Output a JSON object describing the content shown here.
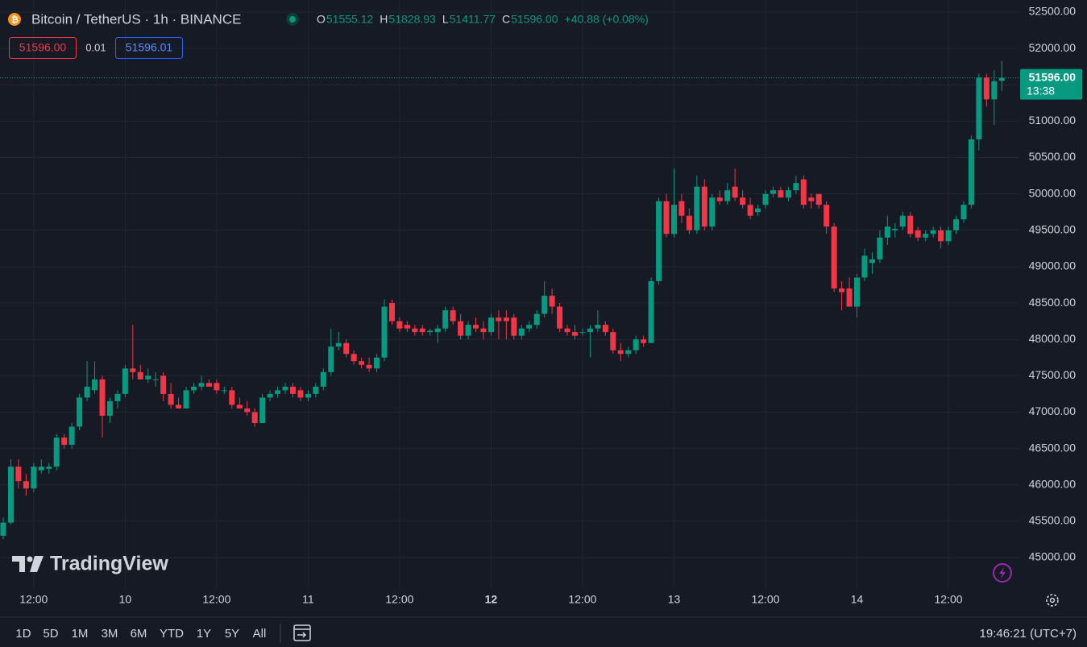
{
  "chart_data": {
    "type": "candlestick",
    "title": "Bitcoin / TetherUS · 1h · BINANCE",
    "ohlc_header": [
      {
        "key": "O",
        "value": "51555.12"
      },
      {
        "key": "H",
        "value": "51828.93"
      },
      {
        "key": "L",
        "value": "51411.77"
      },
      {
        "key": "C",
        "value": "51596.00"
      }
    ],
    "change": "+40.88 (+0.08%)",
    "order_buttons": {
      "sell": "51596.00",
      "spread": "0.01",
      "buy": "51596.01"
    },
    "current_price": {
      "label": "51596.00",
      "countdown": "13:38"
    },
    "up_color": "#089981",
    "down_color": "#f23645",
    "categories": [
      null,
      null,
      null,
      null,
      "12:00",
      null,
      null,
      null,
      null,
      null,
      null,
      null,
      null,
      null,
      null,
      null,
      "10",
      null,
      null,
      null,
      null,
      null,
      null,
      null,
      null,
      null,
      null,
      null,
      "12:00",
      null,
      null,
      null,
      null,
      null,
      null,
      null,
      null,
      null,
      null,
      null,
      "11",
      null,
      null,
      null,
      null,
      null,
      null,
      null,
      null,
      null,
      null,
      null,
      "12:00",
      null,
      null,
      null,
      null,
      null,
      null,
      null,
      null,
      null,
      null,
      null,
      "12",
      null,
      null,
      null,
      null,
      null,
      null,
      null,
      null,
      null,
      null,
      null,
      "12:00",
      null,
      null,
      null,
      null,
      null,
      null,
      null,
      null,
      null,
      null,
      null,
      "13",
      null,
      null,
      null,
      null,
      null,
      null,
      null,
      null,
      null,
      null,
      null,
      "12:00",
      null,
      null,
      null,
      null,
      null,
      null,
      null,
      null,
      null,
      null,
      null,
      "14",
      null,
      null,
      null,
      null,
      null,
      null,
      null,
      null,
      null,
      null,
      null,
      "12:00",
      null,
      null,
      null,
      null,
      null,
      null,
      null
    ],
    "open": [
      45300,
      45480,
      46250,
      46050,
      45950,
      46200,
      46220,
      46250,
      46650,
      46550,
      46800,
      47200,
      47300,
      47450,
      46950,
      47150,
      47250,
      47600,
      47550,
      47450,
      47450,
      47500,
      47250,
      47100,
      47050,
      47300,
      47350,
      47400,
      47400,
      47300,
      47300,
      47100,
      47050,
      47000,
      46850,
      47200,
      47250,
      47300,
      47350,
      47300,
      47200,
      47250,
      47350,
      47550,
      47900,
      47950,
      47800,
      47700,
      47650,
      47600,
      47750,
      48500,
      48250,
      48200,
      48150,
      48150,
      48100,
      48100,
      48150,
      48400,
      48250,
      48050,
      48200,
      48150,
      48100,
      48300,
      48300,
      48300,
      48050,
      48150,
      48200,
      48350,
      48600,
      48450,
      48150,
      48100,
      48100,
      48100,
      48150,
      48200,
      48100,
      47850,
      47800,
      47850,
      48000,
      47950,
      48800,
      49900,
      49450,
      49900,
      49700,
      49500,
      50100,
      49550,
      49950,
      49900,
      50100,
      49950,
      49850,
      49750,
      49850,
      50000,
      50050,
      49950,
      50050,
      50200,
      49950,
      50000,
      49850,
      49550,
      48700,
      48700,
      48450,
      48850,
      49050,
      49100,
      49400,
      49500,
      49550,
      49700,
      49500,
      49400,
      49450,
      49500,
      49350,
      49500,
      49650,
      49850,
      50750,
      51600,
      51300,
      51555.12
    ],
    "high": [
      45550,
      46350,
      46350,
      46150,
      46300,
      46350,
      46300,
      46700,
      46700,
      46850,
      47250,
      47700,
      47700,
      47500,
      47200,
      47300,
      47650,
      48200,
      47650,
      47600,
      47550,
      47550,
      47400,
      47200,
      47350,
      47400,
      47500,
      47450,
      47450,
      47350,
      47350,
      47200,
      47150,
      47050,
      47250,
      47300,
      47350,
      47400,
      47400,
      47350,
      47300,
      47400,
      47600,
      48150,
      48100,
      48000,
      47850,
      47750,
      47750,
      47800,
      48550,
      48550,
      48300,
      48250,
      48200,
      48200,
      48150,
      48200,
      48450,
      48450,
      48350,
      48250,
      48300,
      48250,
      48350,
      48400,
      48400,
      48350,
      48200,
      48250,
      48400,
      48800,
      48700,
      48500,
      48200,
      48200,
      48150,
      48200,
      48400,
      48250,
      48150,
      47950,
      47900,
      48050,
      48050,
      48850,
      49950,
      50000,
      50350,
      50000,
      49800,
      50250,
      50200,
      50000,
      50050,
      50150,
      50350,
      50050,
      49950,
      49850,
      50050,
      50100,
      50100,
      50100,
      50250,
      50250,
      50000,
      50000,
      49900,
      49600,
      48800,
      48850,
      48900,
      49250,
      49200,
      49500,
      49700,
      49600,
      49750,
      49750,
      49550,
      49500,
      49550,
      49550,
      49550,
      49700,
      49900,
      50800,
      51650,
      51650,
      51700,
      51828.93
    ],
    "low": [
      45250,
      45450,
      45950,
      45850,
      45900,
      46150,
      46150,
      46200,
      46500,
      46500,
      46750,
      47150,
      47250,
      46650,
      46850,
      47050,
      47200,
      47450,
      47450,
      47400,
      47350,
      47150,
      47050,
      47050,
      47050,
      47250,
      47300,
      47350,
      47250,
      47250,
      47050,
      47050,
      46950,
      46800,
      46850,
      47150,
      47200,
      47250,
      47200,
      47150,
      47150,
      47200,
      47300,
      47500,
      47850,
      47750,
      47650,
      47600,
      47550,
      47550,
      47700,
      48200,
      48100,
      48100,
      48050,
      48050,
      48050,
      47950,
      48100,
      48200,
      48000,
      48000,
      48100,
      48000,
      48050,
      48000,
      48000,
      48000,
      48000,
      48100,
      48150,
      48300,
      48350,
      48100,
      48050,
      48000,
      48050,
      47750,
      48100,
      48050,
      47800,
      47700,
      47750,
      47800,
      47900,
      47950,
      48750,
      49400,
      49400,
      49600,
      49450,
      49450,
      49500,
      49500,
      49850,
      49850,
      49900,
      49800,
      49650,
      49700,
      49800,
      49950,
      49950,
      49900,
      50000,
      49800,
      49800,
      49800,
      49450,
      48650,
      48400,
      48450,
      48300,
      48800,
      48900,
      49050,
      49300,
      49400,
      49500,
      49400,
      49350,
      49350,
      49400,
      49250,
      49300,
      49450,
      49600,
      49800,
      50600,
      51200,
      50950,
      51411.77
    ],
    "close": [
      45480,
      46250,
      46050,
      45950,
      46250,
      46250,
      46250,
      46650,
      46550,
      46800,
      47200,
      47350,
      47450,
      46950,
      47150,
      47250,
      47600,
      47550,
      47450,
      47500,
      47450,
      47250,
      47100,
      47050,
      47300,
      47350,
      47400,
      47350,
      47300,
      47300,
      47100,
      47050,
      47000,
      46850,
      47200,
      47250,
      47300,
      47350,
      47250,
      47200,
      47250,
      47350,
      47550,
      47900,
      47950,
      47800,
      47700,
      47650,
      47600,
      47750,
      48450,
      48250,
      48150,
      48150,
      48100,
      48100,
      48120,
      48150,
      48400,
      48250,
      48050,
      48200,
      48150,
      48100,
      48300,
      48250,
      48250,
      48050,
      48150,
      48200,
      48350,
      48600,
      48450,
      48150,
      48100,
      48050,
      48100,
      48150,
      48200,
      48100,
      47850,
      47800,
      47850,
      48000,
      47950,
      48800,
      49900,
      49450,
      49850,
      49700,
      49500,
      50100,
      49550,
      49950,
      49900,
      50050,
      49950,
      49850,
      49700,
      49800,
      50000,
      50050,
      49950,
      50050,
      50150,
      49850,
      49900,
      49850,
      49550,
      48700,
      48650,
      48450,
      48850,
      49150,
      49100,
      49400,
      49550,
      49520,
      49700,
      49450,
      49400,
      49450,
      49500,
      49350,
      49500,
      49650,
      49850,
      50750,
      51600,
      51300,
      51550,
      51596
    ],
    "ylim": [
      44579,
      52666
    ],
    "yticks": [
      {
        "value": 45000,
        "label": "45000.00"
      },
      {
        "value": 45500,
        "label": "45500.00"
      },
      {
        "value": 46000,
        "label": "46000.00"
      },
      {
        "value": 46500,
        "label": "46500.00"
      },
      {
        "value": 47000,
        "label": "47000.00"
      },
      {
        "value": 47500,
        "label": "47500.00"
      },
      {
        "value": 48000,
        "label": "48000.00"
      },
      {
        "value": 48500,
        "label": "48500.00"
      },
      {
        "value": 49000,
        "label": "49000.00"
      },
      {
        "value": 49500,
        "label": "49500.00"
      },
      {
        "value": 50000,
        "label": "50000.00"
      },
      {
        "value": 50500,
        "label": "50500.00"
      },
      {
        "value": 51000,
        "label": "51000.00"
      },
      {
        "value": 51500,
        "label": "51500.00"
      },
      {
        "value": 52000,
        "label": "52000.00"
      },
      {
        "value": 52500,
        "label": "52500.00"
      }
    ],
    "grid": true
  },
  "branding": "TradingView",
  "range_buttons": [
    "1D",
    "5D",
    "1M",
    "3M",
    "6M",
    "YTD",
    "1Y",
    "5Y",
    "All"
  ],
  "clock": "19:46:21 (UTC+7)"
}
